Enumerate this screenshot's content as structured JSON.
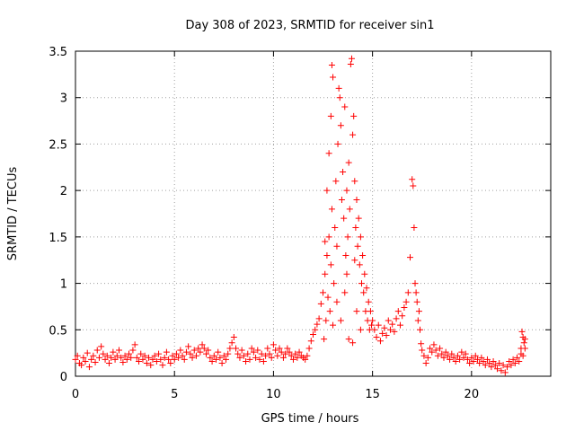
{
  "chart_data": {
    "type": "scatter",
    "title": "Day 308 of 2023, SRMTID for receiver sin1",
    "xlabel": "GPS time / hours",
    "ylabel": "SRMTID / TECUs",
    "xlim": [
      0,
      24
    ],
    "ylim": [
      0,
      3.5
    ],
    "xticks": [
      0,
      5,
      10,
      15,
      20
    ],
    "yticks": [
      0,
      0.5,
      1,
      1.5,
      2,
      2.5,
      3,
      3.5
    ],
    "xtick_labels": [
      "0",
      "5",
      "10",
      "15",
      "20"
    ],
    "ytick_labels": [
      "0",
      "0.5",
      "1",
      "1.5",
      "2",
      "2.5",
      "3",
      "3.5"
    ],
    "grid": true,
    "marker": "plus",
    "color": "#ff0000",
    "series": [
      {
        "name": "SRMTID",
        "points": [
          [
            0.0,
            0.18
          ],
          [
            0.1,
            0.22
          ],
          [
            0.2,
            0.14
          ],
          [
            0.3,
            0.12
          ],
          [
            0.4,
            0.2
          ],
          [
            0.5,
            0.16
          ],
          [
            0.6,
            0.25
          ],
          [
            0.7,
            0.1
          ],
          [
            0.8,
            0.18
          ],
          [
            0.9,
            0.22
          ],
          [
            1.0,
            0.15
          ],
          [
            1.1,
            0.28
          ],
          [
            1.2,
            0.2
          ],
          [
            1.3,
            0.32
          ],
          [
            1.4,
            0.24
          ],
          [
            1.5,
            0.18
          ],
          [
            1.6,
            0.22
          ],
          [
            1.7,
            0.14
          ],
          [
            1.8,
            0.2
          ],
          [
            1.9,
            0.26
          ],
          [
            2.0,
            0.18
          ],
          [
            2.1,
            0.22
          ],
          [
            2.2,
            0.28
          ],
          [
            2.3,
            0.2
          ],
          [
            2.4,
            0.15
          ],
          [
            2.5,
            0.22
          ],
          [
            2.6,
            0.18
          ],
          [
            2.7,
            0.24
          ],
          [
            2.8,
            0.2
          ],
          [
            2.9,
            0.28
          ],
          [
            3.0,
            0.34
          ],
          [
            3.1,
            0.2
          ],
          [
            3.2,
            0.16
          ],
          [
            3.3,
            0.24
          ],
          [
            3.4,
            0.18
          ],
          [
            3.5,
            0.22
          ],
          [
            3.6,
            0.14
          ],
          [
            3.7,
            0.2
          ],
          [
            3.8,
            0.12
          ],
          [
            3.9,
            0.18
          ],
          [
            4.0,
            0.22
          ],
          [
            4.1,
            0.16
          ],
          [
            4.2,
            0.24
          ],
          [
            4.3,
            0.18
          ],
          [
            4.4,
            0.12
          ],
          [
            4.5,
            0.2
          ],
          [
            4.6,
            0.26
          ],
          [
            4.7,
            0.18
          ],
          [
            4.8,
            0.14
          ],
          [
            4.9,
            0.22
          ],
          [
            5.0,
            0.18
          ],
          [
            5.1,
            0.24
          ],
          [
            5.2,
            0.2
          ],
          [
            5.3,
            0.28
          ],
          [
            5.4,
            0.22
          ],
          [
            5.5,
            0.18
          ],
          [
            5.6,
            0.26
          ],
          [
            5.7,
            0.32
          ],
          [
            5.8,
            0.24
          ],
          [
            5.9,
            0.2
          ],
          [
            6.0,
            0.28
          ],
          [
            6.1,
            0.22
          ],
          [
            6.2,
            0.3
          ],
          [
            6.3,
            0.26
          ],
          [
            6.4,
            0.34
          ],
          [
            6.5,
            0.3
          ],
          [
            6.6,
            0.24
          ],
          [
            6.7,
            0.28
          ],
          [
            6.8,
            0.2
          ],
          [
            6.9,
            0.16
          ],
          [
            7.0,
            0.22
          ],
          [
            7.1,
            0.18
          ],
          [
            7.2,
            0.26
          ],
          [
            7.3,
            0.2
          ],
          [
            7.4,
            0.14
          ],
          [
            7.5,
            0.22
          ],
          [
            7.6,
            0.18
          ],
          [
            7.7,
            0.24
          ],
          [
            7.8,
            0.3
          ],
          [
            7.9,
            0.36
          ],
          [
            8.0,
            0.42
          ],
          [
            8.1,
            0.3
          ],
          [
            8.2,
            0.24
          ],
          [
            8.3,
            0.2
          ],
          [
            8.4,
            0.28
          ],
          [
            8.5,
            0.22
          ],
          [
            8.6,
            0.16
          ],
          [
            8.7,
            0.24
          ],
          [
            8.8,
            0.18
          ],
          [
            8.9,
            0.3
          ],
          [
            9.0,
            0.26
          ],
          [
            9.1,
            0.2
          ],
          [
            9.2,
            0.28
          ],
          [
            9.3,
            0.18
          ],
          [
            9.4,
            0.24
          ],
          [
            9.5,
            0.16
          ],
          [
            9.6,
            0.22
          ],
          [
            9.7,
            0.3
          ],
          [
            9.8,
            0.24
          ],
          [
            9.9,
            0.2
          ],
          [
            10.0,
            0.34
          ],
          [
            10.1,
            0.28
          ],
          [
            10.2,
            0.22
          ],
          [
            10.3,
            0.3
          ],
          [
            10.4,
            0.26
          ],
          [
            10.5,
            0.2
          ],
          [
            10.6,
            0.24
          ],
          [
            10.7,
            0.3
          ],
          [
            10.8,
            0.26
          ],
          [
            10.9,
            0.22
          ],
          [
            11.0,
            0.18
          ],
          [
            11.1,
            0.24
          ],
          [
            11.2,
            0.2
          ],
          [
            11.3,
            0.26
          ],
          [
            11.4,
            0.22
          ],
          [
            11.5,
            0.2
          ],
          [
            11.6,
            0.18
          ],
          [
            11.7,
            0.22
          ],
          [
            11.8,
            0.3
          ],
          [
            11.9,
            0.38
          ],
          [
            12.0,
            0.45
          ],
          [
            12.1,
            0.5
          ],
          [
            12.2,
            0.56
          ],
          [
            12.3,
            0.62
          ],
          [
            12.4,
            0.78
          ],
          [
            12.5,
            0.9
          ],
          [
            12.6,
            1.1
          ],
          [
            12.7,
            1.3
          ],
          [
            12.8,
            1.5
          ],
          [
            12.9,
            1.2
          ],
          [
            12.55,
            0.4
          ],
          [
            12.65,
            0.6
          ],
          [
            12.75,
            0.85
          ],
          [
            12.85,
            0.7
          ],
          [
            12.95,
            1.8
          ],
          [
            12.6,
            1.45
          ],
          [
            12.7,
            2.0
          ],
          [
            12.8,
            2.4
          ],
          [
            12.9,
            2.8
          ],
          [
            12.95,
            3.35
          ],
          [
            13.0,
            3.22
          ],
          [
            13.05,
            1.0
          ],
          [
            13.1,
            1.6
          ],
          [
            13.15,
            2.1
          ],
          [
            13.2,
            1.4
          ],
          [
            13.25,
            2.5
          ],
          [
            13.3,
            3.1
          ],
          [
            13.35,
            3.0
          ],
          [
            13.4,
            2.7
          ],
          [
            13.45,
            1.9
          ],
          [
            13.5,
            2.2
          ],
          [
            13.55,
            1.7
          ],
          [
            13.6,
            2.9
          ],
          [
            13.65,
            1.3
          ],
          [
            13.7,
            2.0
          ],
          [
            13.75,
            1.5
          ],
          [
            13.8,
            2.3
          ],
          [
            13.85,
            1.8
          ],
          [
            13.9,
            3.36
          ],
          [
            13.95,
            3.42
          ],
          [
            14.0,
            2.6
          ],
          [
            14.05,
            2.8
          ],
          [
            14.1,
            2.1
          ],
          [
            14.15,
            1.6
          ],
          [
            14.2,
            1.9
          ],
          [
            14.25,
            1.4
          ],
          [
            14.3,
            1.7
          ],
          [
            14.35,
            1.2
          ],
          [
            14.4,
            1.5
          ],
          [
            14.45,
            1.0
          ],
          [
            14.5,
            1.3
          ],
          [
            14.55,
            0.9
          ],
          [
            14.6,
            1.1
          ],
          [
            14.65,
            0.7
          ],
          [
            14.7,
            0.95
          ],
          [
            14.75,
            0.6
          ],
          [
            14.8,
            0.8
          ],
          [
            14.85,
            0.5
          ],
          [
            14.9,
            0.7
          ],
          [
            14.95,
            0.55
          ],
          [
            13.2,
            0.8
          ],
          [
            13.4,
            0.6
          ],
          [
            13.6,
            0.9
          ],
          [
            13.8,
            0.4
          ],
          [
            14.0,
            0.36
          ],
          [
            14.2,
            0.7
          ],
          [
            14.4,
            0.5
          ],
          [
            13.0,
            0.55
          ],
          [
            13.7,
            1.1
          ],
          [
            14.1,
            1.25
          ],
          [
            15.0,
            0.6
          ],
          [
            15.1,
            0.5
          ],
          [
            15.2,
            0.42
          ],
          [
            15.3,
            0.55
          ],
          [
            15.4,
            0.38
          ],
          [
            15.5,
            0.46
          ],
          [
            15.6,
            0.52
          ],
          [
            15.7,
            0.44
          ],
          [
            15.8,
            0.6
          ],
          [
            15.9,
            0.5
          ],
          [
            16.0,
            0.56
          ],
          [
            16.1,
            0.48
          ],
          [
            16.2,
            0.62
          ],
          [
            16.3,
            0.7
          ],
          [
            16.4,
            0.55
          ],
          [
            16.5,
            0.65
          ],
          [
            16.6,
            0.74
          ],
          [
            16.7,
            0.8
          ],
          [
            16.8,
            0.9
          ],
          [
            16.9,
            1.28
          ],
          [
            17.0,
            2.12
          ],
          [
            17.05,
            2.05
          ],
          [
            17.1,
            1.6
          ],
          [
            17.15,
            1.0
          ],
          [
            17.2,
            0.9
          ],
          [
            17.25,
            0.8
          ],
          [
            17.3,
            0.6
          ],
          [
            17.35,
            0.7
          ],
          [
            17.4,
            0.5
          ],
          [
            17.45,
            0.35
          ],
          [
            17.5,
            0.28
          ],
          [
            17.6,
            0.22
          ],
          [
            17.7,
            0.14
          ],
          [
            17.8,
            0.2
          ],
          [
            17.9,
            0.3
          ],
          [
            18.0,
            0.26
          ],
          [
            18.1,
            0.34
          ],
          [
            18.2,
            0.28
          ],
          [
            18.3,
            0.22
          ],
          [
            18.4,
            0.3
          ],
          [
            18.5,
            0.24
          ],
          [
            18.6,
            0.2
          ],
          [
            18.7,
            0.26
          ],
          [
            18.8,
            0.22
          ],
          [
            18.9,
            0.18
          ],
          [
            19.0,
            0.24
          ],
          [
            19.1,
            0.2
          ],
          [
            19.2,
            0.16
          ],
          [
            19.3,
            0.22
          ],
          [
            19.4,
            0.18
          ],
          [
            19.5,
            0.26
          ],
          [
            19.6,
            0.2
          ],
          [
            19.7,
            0.24
          ],
          [
            19.8,
            0.18
          ],
          [
            19.9,
            0.14
          ],
          [
            20.0,
            0.2
          ],
          [
            20.1,
            0.16
          ],
          [
            20.2,
            0.22
          ],
          [
            20.3,
            0.18
          ],
          [
            20.4,
            0.14
          ],
          [
            20.5,
            0.2
          ],
          [
            20.6,
            0.16
          ],
          [
            20.7,
            0.12
          ],
          [
            20.8,
            0.18
          ],
          [
            20.9,
            0.14
          ],
          [
            21.0,
            0.1
          ],
          [
            21.1,
            0.16
          ],
          [
            21.2,
            0.12
          ],
          [
            21.3,
            0.08
          ],
          [
            21.4,
            0.14
          ],
          [
            21.5,
            0.06
          ],
          [
            21.6,
            0.12
          ],
          [
            21.7,
            0.04
          ],
          [
            21.8,
            0.1
          ],
          [
            21.9,
            0.16
          ],
          [
            22.0,
            0.12
          ],
          [
            22.1,
            0.18
          ],
          [
            22.2,
            0.14
          ],
          [
            22.3,
            0.2
          ],
          [
            22.4,
            0.16
          ],
          [
            22.5,
            0.3
          ],
          [
            22.55,
            0.48
          ],
          [
            22.6,
            0.42
          ],
          [
            22.65,
            0.36
          ],
          [
            22.7,
            0.4
          ],
          [
            22.6,
            0.22
          ],
          [
            22.7,
            0.3
          ],
          [
            22.5,
            0.24
          ]
        ]
      }
    ]
  }
}
